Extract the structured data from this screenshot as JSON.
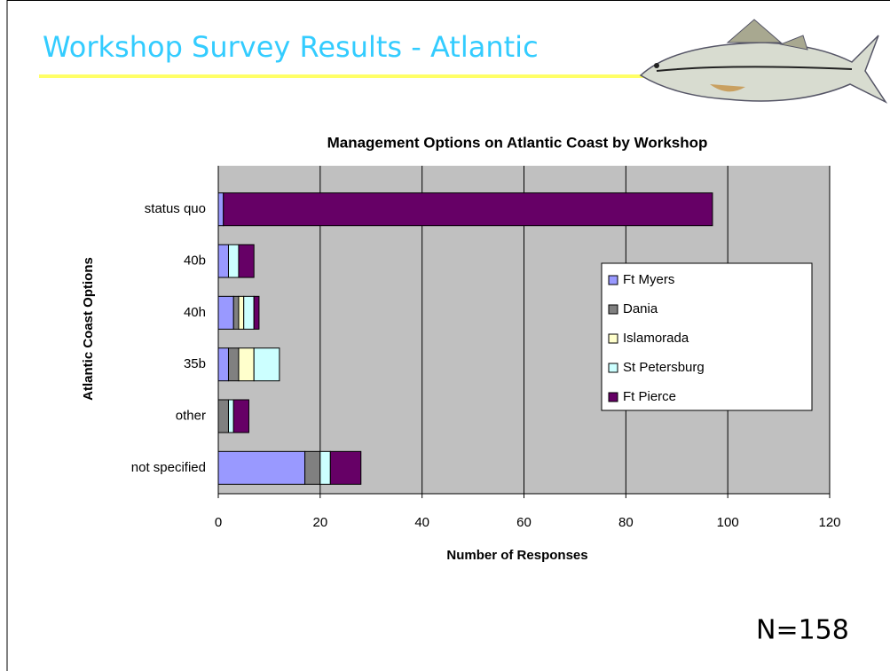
{
  "slide_title": "Workshop Survey Results - Atlantic",
  "note": "N=158",
  "chart_data": {
    "type": "stacked_barh",
    "title": "Management Options on Atlantic Coast by Workshop",
    "x_label": "Number of Responses",
    "y_label": "Atlantic Coast Options",
    "categories": [
      "status quo",
      "40b",
      "40h",
      "35b",
      "other",
      "not specified"
    ],
    "series": [
      {
        "name": "Ft Myers",
        "color": "#9999ff",
        "values": [
          1,
          2,
          3,
          2,
          0,
          17
        ]
      },
      {
        "name": "Dania",
        "color": "#808080",
        "values": [
          0,
          0,
          1,
          2,
          2,
          3
        ]
      },
      {
        "name": "Islamorada",
        "color": "#ffffcc",
        "values": [
          0,
          0,
          1,
          3,
          0,
          0
        ]
      },
      {
        "name": "St Petersburg",
        "color": "#ccffff",
        "values": [
          0,
          2,
          2,
          5,
          1,
          2
        ]
      },
      {
        "name": "Ft Pierce",
        "color": "#660066",
        "values": [
          96,
          3,
          1,
          0,
          3,
          6
        ]
      }
    ],
    "xlim": [
      0,
      120
    ],
    "xticks": [
      0,
      20,
      40,
      60,
      80,
      100,
      120
    ],
    "grid": true,
    "legend": "right"
  }
}
